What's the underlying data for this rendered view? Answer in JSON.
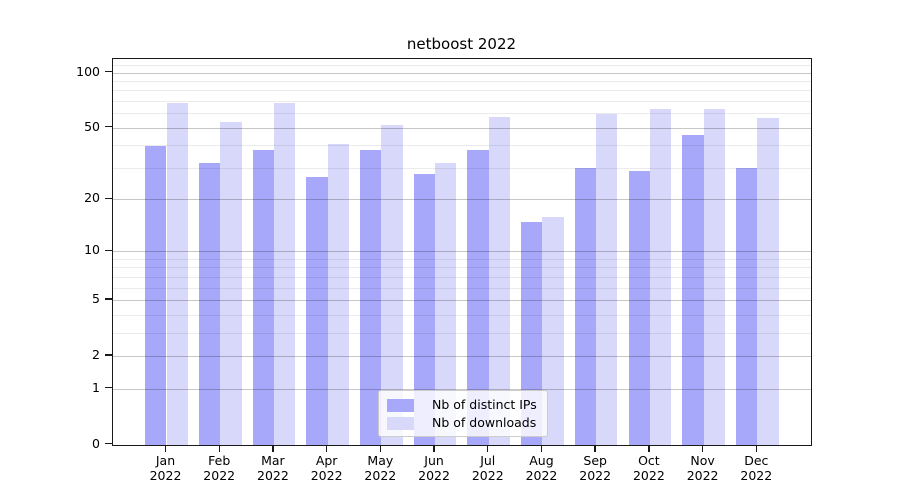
{
  "chart_data": {
    "type": "bar",
    "title": "netboost 2022",
    "categories": [
      "Jan 2022",
      "Feb 2022",
      "Mar 2022",
      "Apr 2022",
      "May 2022",
      "Jun 2022",
      "Jul 2022",
      "Aug 2022",
      "Sep 2022",
      "Oct 2022",
      "Nov 2022",
      "Dec 2022"
    ],
    "series": [
      {
        "name": "Nb of distinct IPs",
        "color": "#a8a8fa",
        "values": [
          40,
          32,
          38,
          27,
          38,
          28,
          38,
          15,
          30,
          29,
          46,
          30
        ]
      },
      {
        "name": "Nb of downloads",
        "color": "#d8d8fa",
        "values": [
          69,
          54,
          69,
          41,
          52,
          32,
          58,
          16,
          60,
          64,
          64,
          57
        ]
      }
    ],
    "xlabel": "",
    "ylabel": "",
    "yscale": "log1p",
    "yticks": [
      0,
      1,
      2,
      5,
      10,
      20,
      50,
      100
    ],
    "minor_yticks": [
      3,
      4,
      6,
      7,
      8,
      9,
      30,
      40,
      60,
      70,
      80,
      90,
      110
    ],
    "ylim": [
      0,
      119
    ],
    "grid": "major+minor, drawn over bars",
    "legend_position": "lower center"
  }
}
